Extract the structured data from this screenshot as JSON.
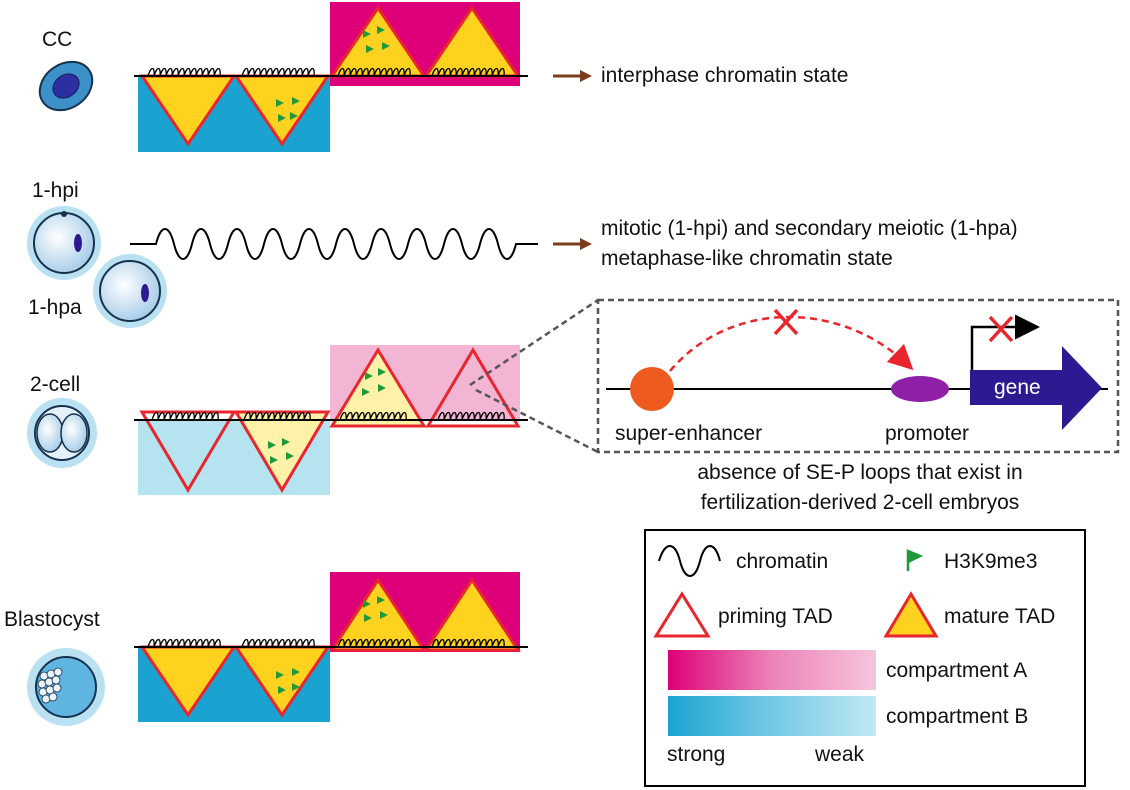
{
  "stages": {
    "cc": "CC",
    "hpi": "1-hpi",
    "hpa": "1-hpa",
    "two_cell": "2-cell",
    "blastocyst": "Blastocyst"
  },
  "states": {
    "interphase": "interphase chromatin state",
    "metaphase_line1": "mitotic (1-hpi) and secondary meiotic (1-hpa)",
    "metaphase_line2": "metaphase-like chromatin state"
  },
  "inset": {
    "super_enhancer": "super-enhancer",
    "promoter": "promoter",
    "gene": "gene",
    "caption_line1": "absence of SE-P loops that exist in",
    "caption_line2": "fertilization-derived 2-cell embryos"
  },
  "legend": {
    "chromatin": "chromatin",
    "h3k9me3": "H3K9me3",
    "priming_tad": "priming TAD",
    "mature_tad": "mature TAD",
    "compartment_a": "compartment A",
    "compartment_b": "compartment B",
    "strong": "strong",
    "weak": "weak"
  },
  "colors": {
    "compartment_a_strong": "#dd0079",
    "compartment_a_weak": "#f2b5d4",
    "compartment_b_strong": "#1aa3d1",
    "compartment_b_weak": "#b5e3f0",
    "tad_fill_mature": "#ffd21f",
    "tad_fill_weak": "#fff1a8",
    "tad_border": "#e8262d",
    "h3k9me3_flag": "#1f9a3b",
    "arrow_brown": "#7a3e1c",
    "super_enhancer": "#ef5a1f",
    "promoter": "#8e1fa6",
    "gene": "#2b1a91",
    "cross": "#e8262d"
  }
}
